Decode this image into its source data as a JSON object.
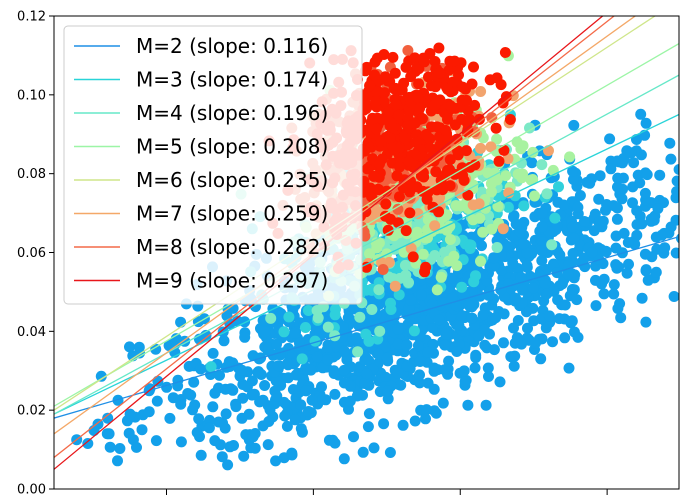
{
  "chart_data": {
    "type": "scatter",
    "title": "",
    "xlabel": "",
    "ylabel": "",
    "ylim": [
      0,
      0.12
    ],
    "yticks": [
      0.0,
      0.02,
      0.04,
      0.06,
      0.08,
      0.1,
      0.12
    ],
    "ytick_labels": [
      "0.00",
      "0.02",
      "0.04",
      "0.06",
      "0.08",
      "0.10",
      "0.12"
    ],
    "xticks_visible_labels": false,
    "legend_position": "top-left",
    "grid": false,
    "fit_lines": [
      {
        "label": "M=2 (slope: 0.116)",
        "color": "#1f8fe6",
        "y_left": 0.018,
        "y_right": 0.064
      },
      {
        "label": "M=3 (slope: 0.174)",
        "color": "#29d4d8",
        "y_left": 0.019,
        "y_right": 0.095
      },
      {
        "label": "M=4 (slope: 0.196)",
        "color": "#66e8c8",
        "y_left": 0.019,
        "y_right": 0.105
      },
      {
        "label": "M=5 (slope: 0.208)",
        "color": "#9cf5a6",
        "y_left": 0.021,
        "y_right": 0.113
      },
      {
        "label": "M=6 (slope: 0.235)",
        "color": "#cfe68a",
        "y_left": 0.02,
        "y_right": 0.124
      },
      {
        "label": "M=7 (slope: 0.259)",
        "color": "#f4a868",
        "y_left": 0.014,
        "y_right": 0.128
      },
      {
        "label": "M=8 (slope: 0.282)",
        "color": "#f46a48",
        "y_left": 0.008,
        "y_right": 0.133
      },
      {
        "label": "M=9 (slope: 0.297)",
        "color": "#e8161a",
        "y_left": 0.005,
        "y_right": 0.136
      }
    ],
    "point_groups": [
      {
        "color": "#13a0ea",
        "cx": 0.58,
        "cy": 0.046,
        "sx": 0.22,
        "sy": 0.012,
        "n": 1500
      },
      {
        "color": "#2fd0dc",
        "cx": 0.55,
        "cy": 0.064,
        "sx": 0.09,
        "sy": 0.01,
        "n": 260
      },
      {
        "color": "#7ce9c6",
        "cx": 0.57,
        "cy": 0.07,
        "sx": 0.08,
        "sy": 0.01,
        "n": 220
      },
      {
        "color": "#a8f2a0",
        "cx": 0.6,
        "cy": 0.075,
        "sx": 0.08,
        "sy": 0.01,
        "n": 200
      },
      {
        "color": "#f2a46e",
        "cx": 0.56,
        "cy": 0.082,
        "sx": 0.07,
        "sy": 0.01,
        "n": 180
      },
      {
        "color": "#f2603e",
        "cx": 0.52,
        "cy": 0.086,
        "sx": 0.07,
        "sy": 0.01,
        "n": 180
      },
      {
        "color": "#fb1a00",
        "cx": 0.55,
        "cy": 0.09,
        "sx": 0.07,
        "sy": 0.012,
        "n": 450
      }
    ]
  }
}
